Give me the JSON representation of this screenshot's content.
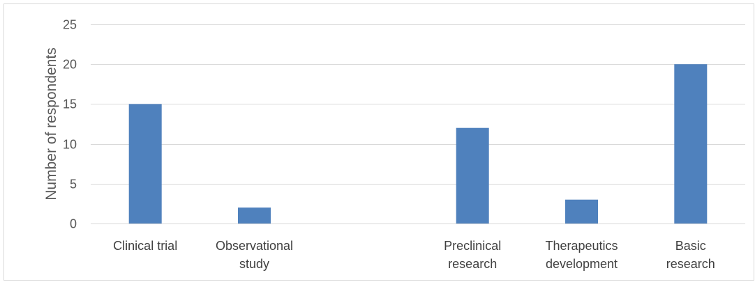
{
  "chart_data": {
    "type": "bar",
    "title": "",
    "xlabel": "",
    "ylabel": "Number of respondents",
    "categories": [
      [
        "Clinical trial"
      ],
      [
        "Observational",
        "study"
      ],
      [
        ""
      ],
      [
        "Preclinical",
        "research"
      ],
      [
        "Therapeutics",
        "development"
      ],
      [
        "Basic",
        "research"
      ]
    ],
    "values": [
      15,
      2,
      0,
      12,
      3,
      20
    ],
    "ylim": [
      0,
      25
    ],
    "yticks": [
      0,
      5,
      10,
      15,
      20,
      25
    ],
    "grid": true,
    "legend": "none",
    "colors": {
      "bar": "#4f81bd",
      "gridline": "#d9d9d9",
      "axis": "#d9d9d9"
    }
  }
}
